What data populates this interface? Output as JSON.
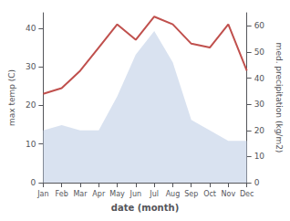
{
  "chart_data": {
    "type": "line",
    "xlabel": "date (month)",
    "ylabel": "max temp (C)",
    "y2label": "med. precipitation (kg/m2)",
    "categories": [
      "Jan",
      "Feb",
      "Mar",
      "Apr",
      "May",
      "Jun",
      "Jul",
      "Aug",
      "Sep",
      "Oct",
      "Nov",
      "Dec"
    ],
    "series": [
      {
        "type": "area",
        "axis": "y2",
        "color": "#c5d3e8",
        "values": [
          20,
          22,
          20,
          20,
          33,
          49,
          58,
          46,
          24,
          20,
          16,
          16
        ]
      },
      {
        "type": "line",
        "color": "#c0504d",
        "values": [
          23,
          24.5,
          29,
          35,
          41,
          37,
          43,
          41,
          36,
          35,
          41,
          29
        ]
      }
    ],
    "ylim": [
      0,
      44
    ],
    "yticks": [
      0,
      10,
      20,
      30,
      40
    ],
    "y2lim": [
      0,
      65
    ],
    "y2ticks": [
      0,
      10,
      20,
      30,
      40,
      50,
      60
    ],
    "grid": false
  }
}
